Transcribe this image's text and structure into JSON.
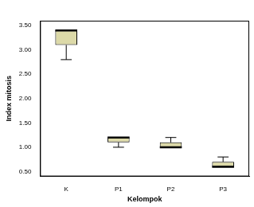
{
  "chart_data": {
    "type": "box",
    "x_label": "Kelompok",
    "y_label": "Index mitosis",
    "categories": [
      "K",
      "P1",
      "P2",
      "P3"
    ],
    "min": [
      2.8,
      1.0,
      1.0,
      0.6
    ],
    "q1": [
      3.1,
      1.1,
      1.0,
      0.6
    ],
    "median": [
      3.4,
      1.2,
      1.0,
      0.6
    ],
    "q3": [
      3.4,
      1.2,
      1.1,
      0.7
    ],
    "max": [
      3.4,
      1.2,
      1.2,
      0.8
    ],
    "color": "#dcd9a8",
    "ylim": [
      0.4,
      3.6
    ],
    "yticks": [
      {
        "value": 0.5,
        "label": "0.50"
      },
      {
        "value": 1.0,
        "label": "1.00"
      },
      {
        "value": 1.5,
        "label": "1.50"
      },
      {
        "value": 2.0,
        "label": "2.00"
      },
      {
        "value": 2.5,
        "label": "2.50"
      },
      {
        "value": 3.0,
        "label": "3.00"
      },
      {
        "value": 3.5,
        "label": "3.50"
      }
    ],
    "grid": false
  }
}
